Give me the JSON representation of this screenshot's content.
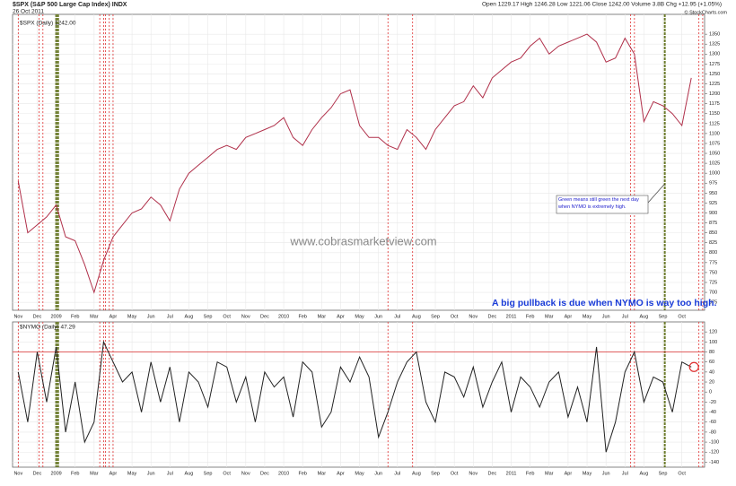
{
  "chart_data": [
    {
      "type": "line",
      "title": "$SPX (S&P 500 Large Cap Index) INDX",
      "date": "26 Oct 2011",
      "quote": "Open 1229.17  High 1246.28  Low 1221.06  Close 1242.00  Volume 3.8B  Chg +12.95 (+1.05%)",
      "source": "© StockCharts.com",
      "watermark": "www.cobrasmarketview.com",
      "annotations": [
        "Green means still green the next day when NYMO is extremely high.",
        "A big pullback is due when NYMO is way too high."
      ],
      "x": [
        0,
        0.5,
        1,
        1.5,
        2,
        2.5,
        3,
        3.5,
        4,
        4.5,
        5,
        5.5,
        6,
        6.5,
        7,
        7.5,
        8,
        8.5,
        9,
        9.5,
        10,
        10.5,
        11,
        11.5,
        12,
        12.5,
        13,
        13.5,
        14,
        14.5,
        15,
        15.5,
        16,
        16.5,
        17,
        17.5,
        18,
        18.5,
        19,
        19.5,
        20,
        20.5,
        21,
        21.5,
        22,
        22.5,
        23,
        23.5,
        24,
        24.5,
        25,
        25.5,
        26,
        26.5,
        27,
        27.5,
        28,
        28.5,
        29,
        29.5,
        30,
        30.5,
        31,
        31.5,
        32,
        32.5,
        33,
        33.5,
        34,
        34.5,
        35,
        35.5
      ],
      "series": [
        {
          "name": "$SPX (Daily) 1242.00",
          "color": "#b0304a",
          "values": [
            980,
            850,
            870,
            890,
            920,
            840,
            830,
            770,
            700,
            780,
            840,
            870,
            900,
            910,
            940,
            920,
            880,
            960,
            1000,
            1020,
            1040,
            1060,
            1070,
            1060,
            1090,
            1100,
            1110,
            1120,
            1140,
            1090,
            1070,
            1110,
            1140,
            1165,
            1200,
            1210,
            1120,
            1090,
            1090,
            1070,
            1060,
            1110,
            1090,
            1060,
            1110,
            1140,
            1170,
            1180,
            1220,
            1190,
            1240,
            1260,
            1280,
            1290,
            1320,
            1340,
            1300,
            1320,
            1330,
            1340,
            1350,
            1330,
            1280,
            1290,
            1340,
            1300,
            1130,
            1180,
            1170,
            1150,
            1120,
            1240
          ]
        }
      ],
      "xlim": [
        -0.3,
        36.2
      ],
      "xticks": [
        {
          "value": 0,
          "label": "Nov"
        },
        {
          "value": 1,
          "label": "Dec"
        },
        {
          "value": 2,
          "label": "2009"
        },
        {
          "value": 3,
          "label": "Feb"
        },
        {
          "value": 4,
          "label": "Mar"
        },
        {
          "value": 5,
          "label": "Apr"
        },
        {
          "value": 6,
          "label": "May"
        },
        {
          "value": 7,
          "label": "Jun"
        },
        {
          "value": 8,
          "label": "Jul"
        },
        {
          "value": 9,
          "label": "Aug"
        },
        {
          "value": 10,
          "label": "Sep"
        },
        {
          "value": 11,
          "label": "Oct"
        },
        {
          "value": 12,
          "label": "Nov"
        },
        {
          "value": 13,
          "label": "Dec"
        },
        {
          "value": 14,
          "label": "2010"
        },
        {
          "value": 15,
          "label": "Feb"
        },
        {
          "value": 16,
          "label": "Mar"
        },
        {
          "value": 17,
          "label": "Apr"
        },
        {
          "value": 18,
          "label": "May"
        },
        {
          "value": 19,
          "label": "Jun"
        },
        {
          "value": 20,
          "label": "Jul"
        },
        {
          "value": 21,
          "label": "Aug"
        },
        {
          "value": 22,
          "label": "Sep"
        },
        {
          "value": 23,
          "label": "Oct"
        },
        {
          "value": 24,
          "label": "Nov"
        },
        {
          "value": 25,
          "label": "Dec"
        },
        {
          "value": 26,
          "label": "2011"
        },
        {
          "value": 27,
          "label": "Feb"
        },
        {
          "value": 28,
          "label": "Mar"
        },
        {
          "value": 29,
          "label": "Apr"
        },
        {
          "value": 30,
          "label": "May"
        },
        {
          "value": 31,
          "label": "Jun"
        },
        {
          "value": 32,
          "label": "Jul"
        },
        {
          "value": 33,
          "label": "Aug"
        },
        {
          "value": 34,
          "label": "Sep"
        },
        {
          "value": 35,
          "label": "Oct"
        }
      ],
      "ylim": [
        655,
        1400
      ],
      "yticks": [
        675,
        700,
        725,
        750,
        775,
        800,
        825,
        850,
        875,
        900,
        925,
        950,
        975,
        1000,
        1025,
        1050,
        1075,
        1100,
        1125,
        1150,
        1175,
        1200,
        1225,
        1250,
        1275,
        1300,
        1325,
        1350
      ],
      "markers": [
        {
          "x": 0.0,
          "color": "#e03030"
        },
        {
          "x": 1.1,
          "color": "#e03030"
        },
        {
          "x": 1.3,
          "color": "#e03030"
        },
        {
          "x": 2.0,
          "color": "#6b7a2a"
        },
        {
          "x": 2.1,
          "color": "#6b7a2a"
        },
        {
          "x": 4.3,
          "color": "#e03030"
        },
        {
          "x": 4.5,
          "color": "#e03030"
        },
        {
          "x": 4.6,
          "color": "#e03030"
        },
        {
          "x": 4.8,
          "color": "#e03030"
        },
        {
          "x": 5.0,
          "color": "#e03030"
        },
        {
          "x": 19.5,
          "color": "#e03030"
        },
        {
          "x": 20.8,
          "color": "#e03030"
        },
        {
          "x": 32.3,
          "color": "#e03030"
        },
        {
          "x": 32.5,
          "color": "#e03030"
        },
        {
          "x": 34.1,
          "color": "#6b7a2a"
        },
        {
          "x": 35.9,
          "color": "#e03030"
        },
        {
          "x": 36.1,
          "color": "#e03030"
        }
      ],
      "grid": true
    },
    {
      "type": "line",
      "series": [
        {
          "name": "$NYMO (Daily) 47.29",
          "color": "#222222",
          "values": [
            40,
            -60,
            80,
            -20,
            90,
            -80,
            20,
            -100,
            -60,
            100,
            60,
            20,
            40,
            -40,
            60,
            -20,
            50,
            -60,
            40,
            20,
            -30,
            60,
            50,
            -20,
            30,
            -60,
            40,
            10,
            30,
            -50,
            60,
            40,
            -70,
            -40,
            50,
            20,
            70,
            30,
            -90,
            -40,
            20,
            60,
            80,
            -20,
            -60,
            40,
            30,
            -10,
            50,
            -30,
            20,
            60,
            -40,
            30,
            10,
            -30,
            20,
            40,
            -50,
            10,
            -60,
            90,
            -120,
            -60,
            40,
            80,
            -20,
            30,
            20,
            -40,
            60,
            50
          ]
        }
      ],
      "ylim": [
        -150,
        140
      ],
      "yticks": [
        -140,
        -120,
        -100,
        -80,
        -60,
        -40,
        -20,
        0,
        20,
        40,
        60,
        80,
        100,
        120
      ],
      "reference_line": 80,
      "reference_color": "#e06060",
      "grid": true
    }
  ]
}
